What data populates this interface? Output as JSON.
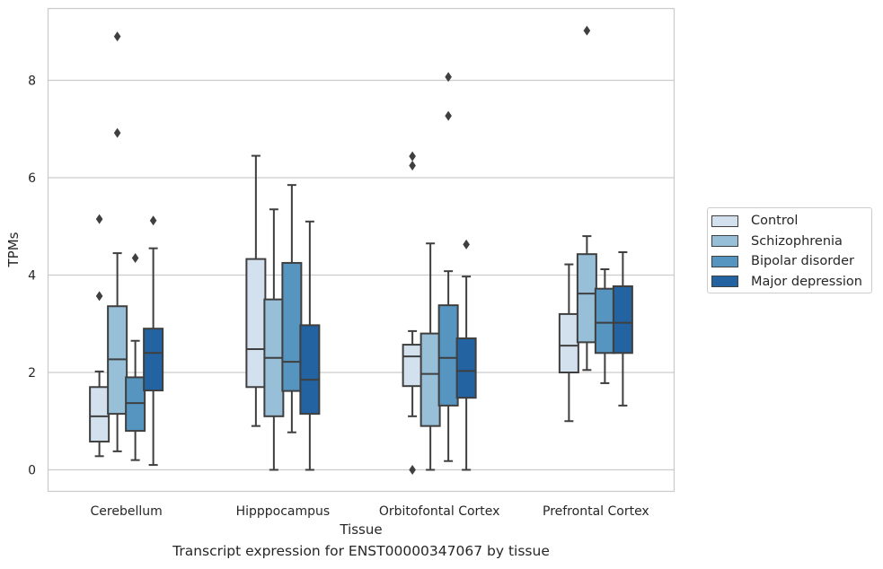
{
  "chart_data": {
    "type": "box",
    "title": "",
    "caption": "Transcript expression for ENST00000347067 by tissue",
    "xlabel": "Tissue",
    "ylabel": "TPMs",
    "ylim": [
      -0.45,
      9.6
    ],
    "yticks": [
      0,
      2,
      4,
      6,
      8
    ],
    "grid": "horizontal",
    "legend_position": "right",
    "categories": [
      "Cerebellum",
      "Hipppocampus",
      "Orbitofontal Cortex",
      "Prefrontal Cortex"
    ],
    "series": [
      {
        "name": "Control",
        "color": "#d3e1ef",
        "boxes": [
          {
            "whislo": 0.28,
            "q1": 0.58,
            "med": 1.1,
            "q3": 1.7,
            "whishi": 2.02,
            "fliers": [
              3.57,
              5.15
            ]
          },
          {
            "whislo": 0.9,
            "q1": 1.7,
            "med": 2.48,
            "q3": 4.33,
            "whishi": 6.45,
            "fliers": []
          },
          {
            "whislo": 1.1,
            "q1": 1.72,
            "med": 2.33,
            "q3": 2.57,
            "whishi": 2.85,
            "fliers": [
              0.0,
              6.25,
              6.44
            ]
          },
          {
            "whislo": 1.0,
            "q1": 2.0,
            "med": 2.55,
            "q3": 3.2,
            "whishi": 4.22,
            "fliers": []
          }
        ]
      },
      {
        "name": "Schizophrenia",
        "color": "#97bfd8",
        "boxes": [
          {
            "whislo": 0.38,
            "q1": 1.15,
            "med": 2.27,
            "q3": 3.36,
            "whishi": 4.45,
            "fliers": [
              6.92,
              8.9
            ]
          },
          {
            "whislo": 0.0,
            "q1": 1.1,
            "med": 2.3,
            "q3": 3.5,
            "whishi": 5.35,
            "fliers": []
          },
          {
            "whislo": 0.0,
            "q1": 0.9,
            "med": 1.97,
            "q3": 2.8,
            "whishi": 4.65,
            "fliers": []
          },
          {
            "whislo": 2.05,
            "q1": 2.62,
            "med": 3.62,
            "q3": 4.43,
            "whishi": 4.8,
            "fliers": [
              9.02
            ]
          }
        ]
      },
      {
        "name": "Bipolar disorder",
        "color": "#5595c0",
        "boxes": [
          {
            "whislo": 0.2,
            "q1": 0.8,
            "med": 1.37,
            "q3": 1.9,
            "whishi": 2.65,
            "fliers": [
              4.35
            ]
          },
          {
            "whislo": 0.77,
            "q1": 1.62,
            "med": 2.22,
            "q3": 4.25,
            "whishi": 5.85,
            "fliers": []
          },
          {
            "whislo": 0.18,
            "q1": 1.32,
            "med": 2.3,
            "q3": 3.38,
            "whishi": 4.08,
            "fliers": [
              7.27,
              8.07
            ]
          },
          {
            "whislo": 1.78,
            "q1": 2.4,
            "med": 3.02,
            "q3": 3.72,
            "whishi": 4.12,
            "fliers": []
          }
        ]
      },
      {
        "name": "Major depression",
        "color": "#2363a1",
        "boxes": [
          {
            "whislo": 0.1,
            "q1": 1.63,
            "med": 2.4,
            "q3": 2.9,
            "whishi": 4.55,
            "fliers": [
              5.12
            ]
          },
          {
            "whislo": 0.0,
            "q1": 1.15,
            "med": 1.85,
            "q3": 2.97,
            "whishi": 5.1,
            "fliers": []
          },
          {
            "whislo": 0.0,
            "q1": 1.48,
            "med": 2.03,
            "q3": 2.7,
            "whishi": 3.97,
            "fliers": [
              4.63
            ]
          },
          {
            "whislo": 1.32,
            "q1": 2.4,
            "med": 3.02,
            "q3": 3.77,
            "whishi": 4.47,
            "fliers": []
          }
        ]
      }
    ]
  }
}
